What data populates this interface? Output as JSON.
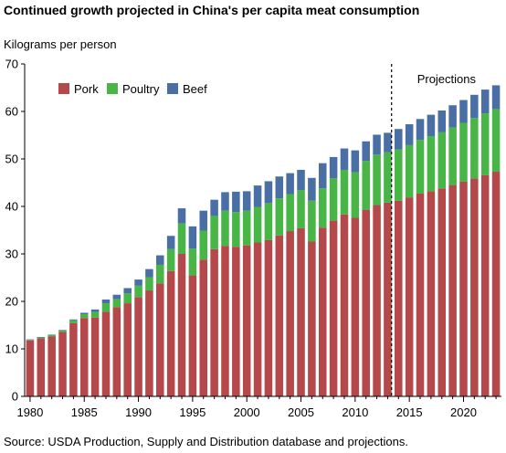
{
  "chart_data": {
    "type": "bar",
    "stacked": true,
    "title": "Continued growth projected in China's per capita meat consumption",
    "ylabel": "Kilograms per person",
    "xlabel": "",
    "ylim": [
      0,
      70
    ],
    "yticks": [
      0,
      10,
      20,
      30,
      40,
      50,
      60,
      70
    ],
    "xticks": [
      1980,
      1985,
      1990,
      1995,
      2000,
      2005,
      2010,
      2015,
      2020
    ],
    "grid": false,
    "legend_position": "top-left",
    "annotation": "Projections",
    "projection_start": 2014,
    "categories": [
      1980,
      1981,
      1982,
      1983,
      1984,
      1985,
      1986,
      1987,
      1988,
      1989,
      1990,
      1991,
      1992,
      1993,
      1994,
      1995,
      1996,
      1997,
      1998,
      1999,
      2000,
      2001,
      2002,
      2003,
      2004,
      2005,
      2006,
      2007,
      2008,
      2009,
      2010,
      2011,
      2012,
      2013,
      2014,
      2015,
      2016,
      2017,
      2018,
      2019,
      2020,
      2021,
      2022,
      2023
    ],
    "series": [
      {
        "name": "Pork",
        "color": "#b5484a",
        "values": [
          11.8,
          12.2,
          12.6,
          13.6,
          15.4,
          16.5,
          16.6,
          17.8,
          18.8,
          19.6,
          20.9,
          22.3,
          23.8,
          26.4,
          30.0,
          25.5,
          28.8,
          31.0,
          31.7,
          31.5,
          31.8,
          32.4,
          32.9,
          33.9,
          34.8,
          35.4,
          32.6,
          35.5,
          37.0,
          38.3,
          37.6,
          39.3,
          40.3,
          40.8,
          41.2,
          41.9,
          42.7,
          43.2,
          43.8,
          44.5,
          45.2,
          45.9,
          46.6,
          47.3
        ]
      },
      {
        "name": "Poultry",
        "color": "#48b547",
        "values": [
          0.1,
          0.2,
          0.3,
          0.3,
          0.6,
          0.8,
          1.2,
          1.8,
          1.7,
          2.1,
          2.4,
          2.8,
          3.9,
          4.6,
          6.4,
          5.6,
          6.1,
          7.0,
          7.4,
          7.3,
          7.3,
          7.5,
          7.8,
          7.8,
          7.8,
          8.0,
          8.6,
          8.3,
          8.9,
          9.4,
          9.6,
          10.3,
          10.6,
          10.6,
          10.8,
          11.0,
          11.3,
          11.6,
          11.8,
          12.1,
          12.4,
          12.7,
          13.0,
          13.2
        ]
      },
      {
        "name": "Beef",
        "color": "#4a6fa5",
        "values": [
          0.1,
          0.1,
          0.1,
          0.1,
          0.2,
          0.3,
          0.5,
          0.8,
          0.9,
          1.1,
          1.3,
          1.7,
          2.0,
          2.8,
          3.2,
          4.7,
          4.2,
          3.4,
          3.9,
          4.3,
          4.1,
          4.5,
          4.6,
          4.6,
          4.4,
          4.3,
          4.8,
          5.3,
          4.5,
          4.5,
          4.6,
          4.1,
          4.2,
          4.1,
          4.3,
          4.4,
          4.4,
          4.5,
          4.6,
          4.7,
          4.8,
          4.9,
          5.0,
          5.0
        ]
      }
    ]
  },
  "source": "Source: USDA Production, Supply and Distribution database and projections."
}
